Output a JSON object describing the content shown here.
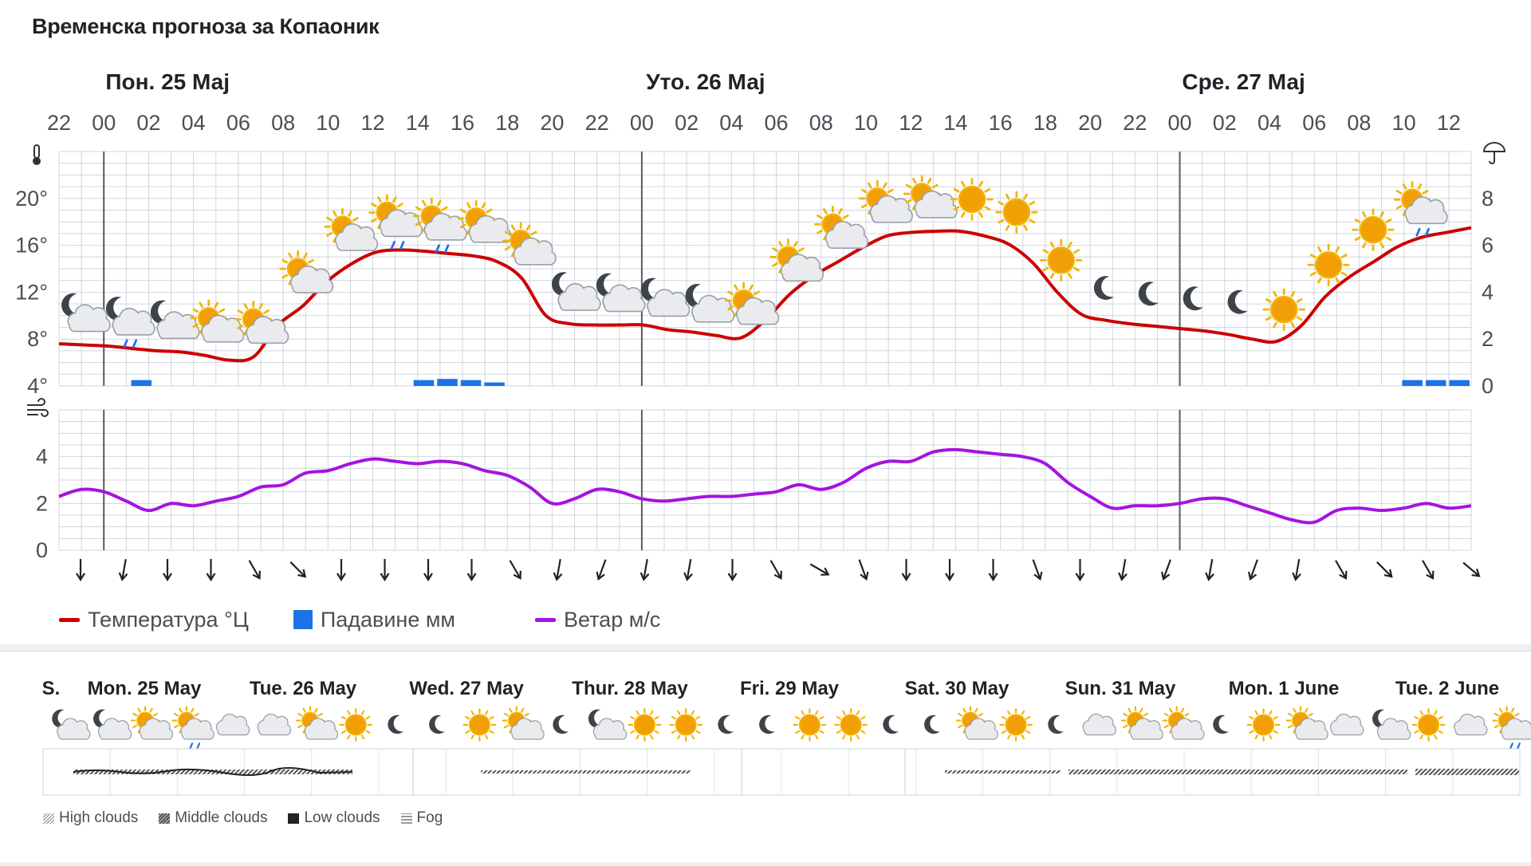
{
  "title": "Временска прогноза за Копаоник",
  "colors": {
    "temperature": "#cc0000",
    "precipitation": "#1a73e8",
    "wind": "#a513e0",
    "grid": "#d0d6de",
    "axis": "#555c63"
  },
  "chart_data": [
    {
      "type": "line",
      "hours": [
        "22",
        "00",
        "02",
        "04",
        "06",
        "08",
        "10",
        "12",
        "14",
        "16",
        "18",
        "20",
        "22",
        "00",
        "02",
        "04",
        "06",
        "08",
        "10",
        "12",
        "14",
        "16",
        "18",
        "20",
        "22",
        "00",
        "02",
        "04",
        "06",
        "08",
        "10",
        "12"
      ],
      "day_labels": [
        {
          "label": "Пон. 25 Мај",
          "at_tick": 1
        },
        {
          "label": "Уто. 26 Мај",
          "at_tick": 13
        },
        {
          "label": "Сре. 27 Мај",
          "at_tick": 25
        }
      ],
      "temp_axis": {
        "ticks": [
          "4°",
          "8°",
          "12°",
          "16°",
          "20°"
        ],
        "min": 4,
        "max": 24
      },
      "precip_axis": {
        "ticks": [
          "0",
          "2",
          "4",
          "6",
          "8"
        ],
        "min": 0,
        "max": 10
      },
      "temperature_c": [
        7.6,
        7.5,
        7.4,
        7.2,
        7.0,
        6.9,
        6.6,
        6.2,
        6.5,
        9.2,
        10.8,
        12.9,
        14.4,
        15.4,
        15.6,
        15.5,
        15.3,
        15.1,
        14.6,
        13.2,
        10.0,
        9.3,
        9.2,
        9.2,
        9.2,
        8.8,
        8.6,
        8.3,
        8.1,
        9.6,
        11.8,
        13.4,
        14.6,
        15.8,
        16.8,
        17.1,
        17.2,
        17.2,
        16.8,
        16.1,
        14.5,
        12.0,
        10.1,
        9.6,
        9.3,
        9.1,
        8.9,
        8.7,
        8.4,
        8.0,
        7.8,
        9.1,
        11.6,
        13.3,
        14.6,
        15.9,
        16.7,
        17.1,
        17.5
      ],
      "precipitation_mm": [
        0,
        0,
        0,
        0.25,
        0,
        0,
        0,
        0,
        0,
        0,
        0,
        0,
        0,
        0,
        0,
        0.25,
        0.3,
        0.25,
        0.15,
        0,
        0,
        0,
        0,
        0,
        0,
        0,
        0,
        0,
        0,
        0,
        0,
        0,
        0,
        0,
        0,
        0,
        0,
        0,
        0,
        0,
        0,
        0,
        0,
        0,
        0,
        0,
        0,
        0,
        0,
        0,
        0,
        0,
        0,
        0,
        0,
        0,
        0,
        0.25,
        0.25,
        0.25
      ],
      "weather_icons": [
        "moon-cloud",
        "moon-cloud-rain",
        "moon-cloud",
        "sun-cloud",
        "sun-cloud",
        "sun-cloud",
        "sun-cloud",
        "sun-cloud-rain",
        "sun-cloud-rain",
        "sun-cloud",
        "sun-cloud",
        "moon-cloud",
        "moon-cloud",
        "moon-cloud",
        "moon-cloud",
        "sun-cloud",
        "sun-cloud",
        "sun-cloud",
        "sun-cloud",
        "sun-cloud",
        "sun",
        "sun",
        "sun",
        "moon",
        "moon",
        "moon",
        "moon",
        "sun",
        "sun",
        "sun",
        "sun-cloud-rain"
      ],
      "series": [
        {
          "name": "Температура °Ц"
        },
        {
          "name": "Падавине мм"
        }
      ]
    },
    {
      "type": "line",
      "wind_axis": {
        "ticks": [
          "0",
          "2",
          "4"
        ],
        "min": 0,
        "max": 6
      },
      "wind_ms": [
        2.3,
        2.6,
        2.5,
        2.1,
        1.7,
        2.0,
        1.9,
        2.1,
        2.3,
        2.7,
        2.8,
        3.3,
        3.4,
        3.7,
        3.9,
        3.8,
        3.7,
        3.8,
        3.7,
        3.4,
        3.2,
        2.7,
        2.0,
        2.2,
        2.6,
        2.5,
        2.2,
        2.1,
        2.2,
        2.3,
        2.3,
        2.4,
        2.5,
        2.8,
        2.6,
        2.9,
        3.5,
        3.8,
        3.8,
        4.2,
        4.3,
        4.2,
        4.1,
        4.0,
        3.7,
        2.9,
        2.3,
        1.8,
        1.9,
        1.9,
        2.0,
        2.2,
        2.2,
        1.9,
        1.6,
        1.3,
        1.2,
        1.7,
        1.8,
        1.7,
        1.8,
        2.0,
        1.8,
        1.9
      ],
      "wind_direction_deg": [
        0,
        10,
        0,
        0,
        330,
        315,
        0,
        0,
        0,
        0,
        330,
        10,
        20,
        10,
        10,
        0,
        330,
        300,
        340,
        0,
        0,
        0,
        340,
        0,
        10,
        20,
        10,
        20,
        10,
        330,
        315,
        330,
        310
      ],
      "series": [
        {
          "name": "Ветар м/с"
        }
      ]
    }
  ],
  "daily": {
    "days": [
      "S.",
      "Mon. 25 May",
      "Tue. 26 May",
      "Wed. 27 May",
      "Thur. 28 May",
      "Fri. 29 May",
      "Sat. 30 May",
      "Sun. 31 May",
      "Mon. 1 June",
      "Tue. 2 June"
    ],
    "icons": [
      "moon-cloud",
      "moon-cloud",
      "sun-cloud",
      "sun-cloud-rain",
      "cloud",
      "cloud",
      "sun-cloud",
      "sun",
      "moon",
      "moon",
      "sun",
      "sun-cloud",
      "moon",
      "moon-cloud",
      "sun",
      "sun",
      "moon",
      "moon",
      "sun",
      "sun",
      "moon",
      "moon",
      "sun-cloud",
      "sun",
      "moon",
      "cloud",
      "sun-cloud",
      "sun-cloud",
      "moon",
      "sun",
      "sun-cloud",
      "cloud",
      "moon-cloud",
      "sun",
      "cloud",
      "sun-cloud-rain"
    ],
    "cloud_legend": [
      "High clouds",
      "Middle clouds",
      "Low clouds",
      "Fog"
    ]
  }
}
